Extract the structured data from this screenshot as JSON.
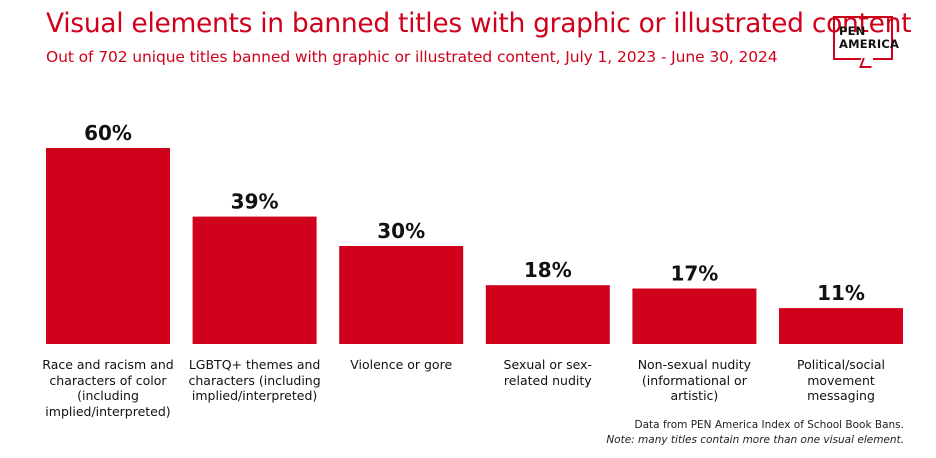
{
  "header": {
    "title": "Visual elements in banned titles with graphic or illustrated content",
    "subtitle": "Out of 702 unique titles banned with graphic or illustrated content, July 1, 2023 - June 30, 2024"
  },
  "logo": {
    "line1": "PEN",
    "line2": "AMERICA"
  },
  "footer": {
    "source": "Data from PEN America Index of School Book Bans.",
    "note": "Note: many titles contain more than one visual element."
  },
  "colors": {
    "accent": "#d0021b",
    "text": "#111111"
  },
  "chart_data": {
    "type": "bar",
    "categories": [
      [
        "Race and racism and",
        "characters of color",
        "(including",
        "implied/interpreted)"
      ],
      [
        "LGBTQ+ themes and",
        "characters (including",
        "implied/interpreted)"
      ],
      [
        "Violence or gore"
      ],
      [
        "Sexual or sex-",
        "related nudity"
      ],
      [
        "Non-sexual nudity",
        "(informational or",
        "artistic)"
      ],
      [
        "Political/social",
        "movement",
        "messaging"
      ]
    ],
    "values": [
      60,
      39,
      30,
      18,
      17,
      11
    ],
    "value_labels": [
      "60%",
      "39%",
      "30%",
      "18%",
      "17%",
      "11%"
    ],
    "unit": "%",
    "ylim": [
      0,
      60
    ],
    "grid": false,
    "legend": "none"
  }
}
